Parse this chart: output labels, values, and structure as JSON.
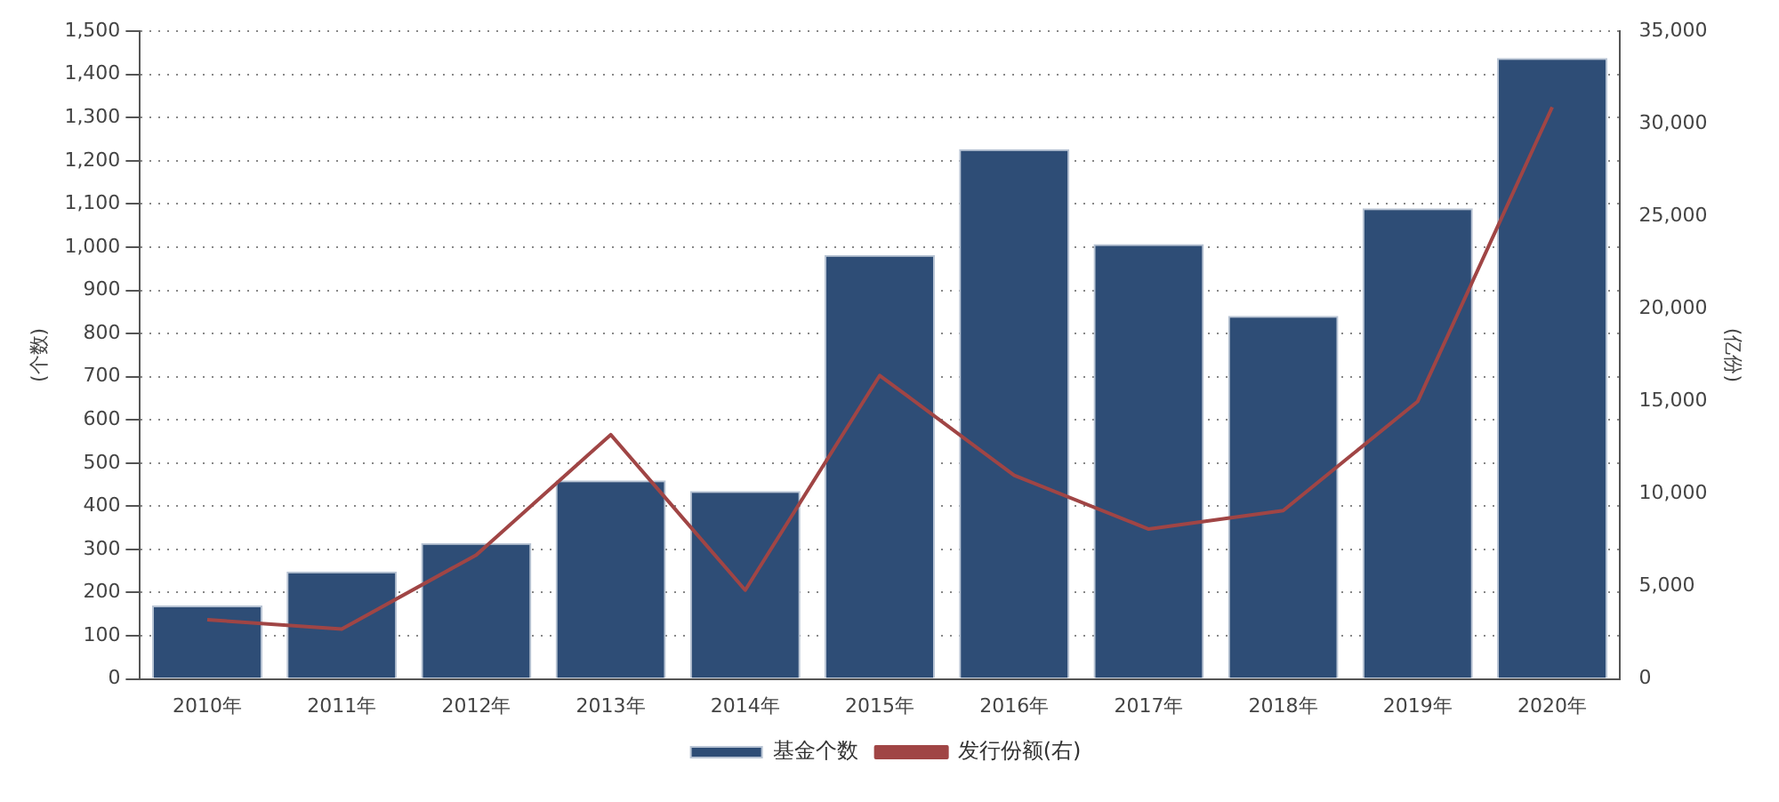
{
  "chart_data": {
    "type": "bar",
    "categories": [
      "2010年",
      "2011年",
      "2012年",
      "2013年",
      "2014年",
      "2015年",
      "2016年",
      "2017年",
      "2018年",
      "2019年",
      "2020年"
    ],
    "ylabel": "(个数)",
    "y2label": "(亿份)",
    "series": [
      {
        "name": "基金个数",
        "color": "#2e4d76",
        "values": [
          170,
          249,
          315,
          460,
          435,
          982,
          1227,
          1007,
          841,
          1090,
          1438
        ]
      },
      {
        "name": "发行份额(右)",
        "type": "line",
        "axis": "y2",
        "color": "#a04545",
        "values": [
          3200,
          2700,
          6700,
          13200,
          4800,
          16400,
          11000,
          8100,
          9100,
          15000,
          30900
        ]
      }
    ],
    "ylim": [
      0,
      1500
    ],
    "yticks": [
      0,
      100,
      200,
      300,
      400,
      500,
      600,
      700,
      800,
      900,
      {
        "value": 1000,
        "label": "1,000"
      },
      {
        "value": 1100,
        "label": "1,100"
      },
      {
        "value": 1200,
        "label": "1,200"
      },
      {
        "value": 1300,
        "label": "1,300"
      },
      {
        "value": 1400,
        "label": "1,400"
      },
      {
        "value": 1500,
        "label": "1,500"
      }
    ],
    "y2lim": [
      0,
      35000
    ],
    "y2ticks": [
      0,
      {
        "value": 5000,
        "label": "5,000"
      },
      {
        "value": 10000,
        "label": "10,000"
      },
      {
        "value": 15000,
        "label": "15,000"
      },
      {
        "value": 20000,
        "label": "20,000"
      },
      {
        "value": 25000,
        "label": "25,000"
      },
      {
        "value": 30000,
        "label": "30,000"
      },
      {
        "value": 35000,
        "label": "35,000"
      }
    ],
    "grid": "y",
    "legend": "bottom",
    "marker": "none"
  }
}
